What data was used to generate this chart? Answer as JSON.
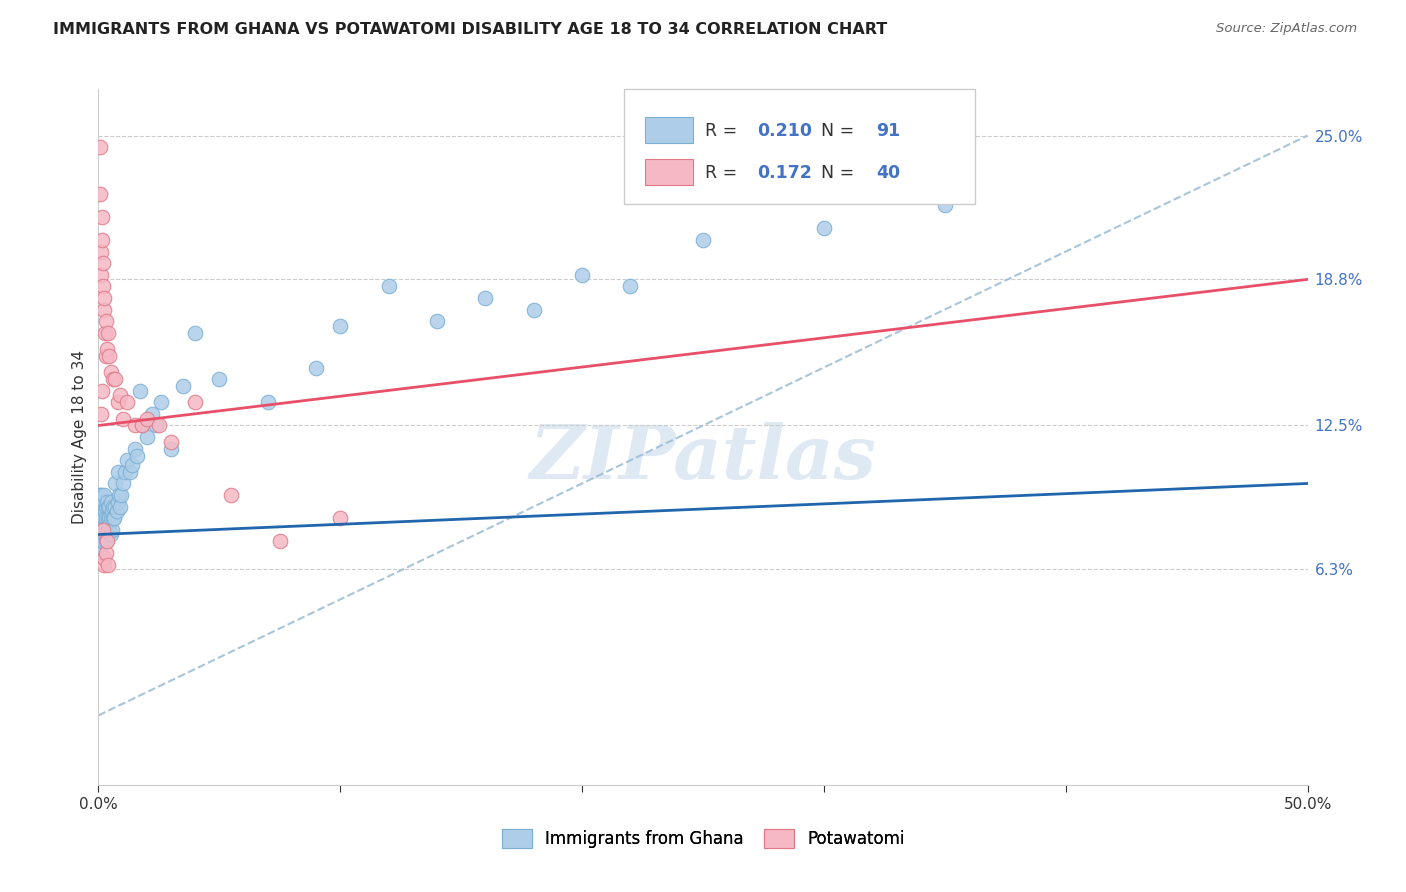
{
  "title": "IMMIGRANTS FROM GHANA VS POTAWATOMI DISABILITY AGE 18 TO 34 CORRELATION CHART",
  "source": "Source: ZipAtlas.com",
  "ylabel": "Disability Age 18 to 34",
  "right_yticks": [
    6.3,
    12.5,
    18.8,
    25.0
  ],
  "right_ytick_labels": [
    "6.3%",
    "12.5%",
    "18.8%",
    "25.0%"
  ],
  "xmin": 0.0,
  "xmax": 50.0,
  "ymin": -3.0,
  "ymax": 27.0,
  "ghana_R": 0.21,
  "ghana_N": 91,
  "potawatomi_R": 0.172,
  "potawatomi_N": 40,
  "ghana_color": "#aecde8",
  "ghana_edge_color": "#7bafd4",
  "potawatomi_color": "#f5b8c4",
  "potawatomi_edge_color": "#e07888",
  "ghana_trend_color": "#2166ac",
  "potawatomi_trend_color": "#e8506a",
  "diagonal_color": "#99bbd4",
  "legend_label_ghana": "Immigrants from Ghana",
  "legend_label_potawatomi": "Potawatomi",
  "watermark": "ZIPatlas",
  "ghana_trend_x0": 0.0,
  "ghana_trend_y0": 7.8,
  "ghana_trend_x1": 50.0,
  "ghana_trend_y1": 10.0,
  "potawatomi_trend_x0": 0.0,
  "potawatomi_trend_y0": 12.5,
  "potawatomi_trend_x1": 50.0,
  "potawatomi_trend_y1": 18.8,
  "ghana_x": [
    0.05,
    0.05,
    0.05,
    0.05,
    0.05,
    0.07,
    0.07,
    0.08,
    0.08,
    0.09,
    0.1,
    0.1,
    0.1,
    0.1,
    0.12,
    0.12,
    0.13,
    0.14,
    0.15,
    0.15,
    0.15,
    0.17,
    0.18,
    0.18,
    0.2,
    0.2,
    0.2,
    0.22,
    0.22,
    0.25,
    0.25,
    0.25,
    0.28,
    0.28,
    0.3,
    0.3,
    0.3,
    0.32,
    0.35,
    0.35,
    0.38,
    0.4,
    0.4,
    0.42,
    0.45,
    0.45,
    0.5,
    0.5,
    0.5,
    0.55,
    0.55,
    0.6,
    0.62,
    0.65,
    0.7,
    0.7,
    0.75,
    0.8,
    0.8,
    0.85,
    0.9,
    0.95,
    1.0,
    1.1,
    1.2,
    1.3,
    1.4,
    1.5,
    1.6,
    1.7,
    1.8,
    2.0,
    2.2,
    2.4,
    2.6,
    3.0,
    3.5,
    4.0,
    5.0,
    7.0,
    9.0,
    10.0,
    12.0,
    14.0,
    16.0,
    18.0,
    20.0,
    22.0,
    25.0,
    30.0,
    35.0
  ],
  "ghana_y": [
    7.8,
    8.2,
    8.5,
    9.0,
    9.5,
    7.5,
    8.0,
    8.8,
    9.2,
    8.5,
    7.0,
    7.8,
    8.5,
    9.0,
    8.2,
    9.5,
    7.8,
    8.5,
    7.5,
    8.0,
    9.2,
    8.8,
    8.2,
    9.0,
    7.5,
    8.0,
    9.0,
    8.5,
    9.2,
    7.8,
    8.5,
    9.5,
    8.0,
    8.8,
    7.5,
    8.2,
    9.0,
    8.5,
    8.0,
    9.2,
    8.5,
    8.0,
    9.0,
    8.5,
    8.2,
    9.0,
    7.8,
    8.5,
    9.2,
    8.0,
    8.8,
    8.5,
    9.0,
    8.5,
    9.0,
    10.0,
    8.8,
    9.2,
    10.5,
    9.5,
    9.0,
    9.5,
    10.0,
    10.5,
    11.0,
    10.5,
    10.8,
    11.5,
    11.2,
    14.0,
    12.5,
    12.0,
    13.0,
    12.5,
    13.5,
    11.5,
    14.2,
    16.5,
    14.5,
    13.5,
    15.0,
    16.8,
    18.5,
    17.0,
    18.0,
    17.5,
    19.0,
    18.5,
    20.5,
    21.0,
    22.0
  ],
  "potawatomi_x": [
    0.05,
    0.08,
    0.1,
    0.12,
    0.15,
    0.15,
    0.18,
    0.2,
    0.22,
    0.25,
    0.28,
    0.3,
    0.3,
    0.35,
    0.4,
    0.45,
    0.5,
    0.6,
    0.7,
    0.8,
    0.9,
    1.0,
    1.2,
    1.5,
    1.8,
    2.0,
    2.5,
    3.0,
    4.0,
    5.5,
    7.5,
    10.0,
    0.18,
    0.22,
    0.25,
    0.3,
    0.35,
    0.4,
    0.12,
    0.15
  ],
  "potawatomi_y": [
    24.5,
    22.5,
    20.0,
    19.0,
    21.5,
    20.5,
    19.5,
    18.5,
    17.5,
    18.0,
    16.5,
    17.0,
    15.5,
    15.8,
    16.5,
    15.5,
    14.8,
    14.5,
    14.5,
    13.5,
    13.8,
    12.8,
    13.5,
    12.5,
    12.5,
    12.8,
    12.5,
    11.8,
    13.5,
    9.5,
    7.5,
    8.5,
    8.0,
    6.5,
    6.8,
    7.0,
    7.5,
    6.5,
    13.0,
    14.0
  ]
}
